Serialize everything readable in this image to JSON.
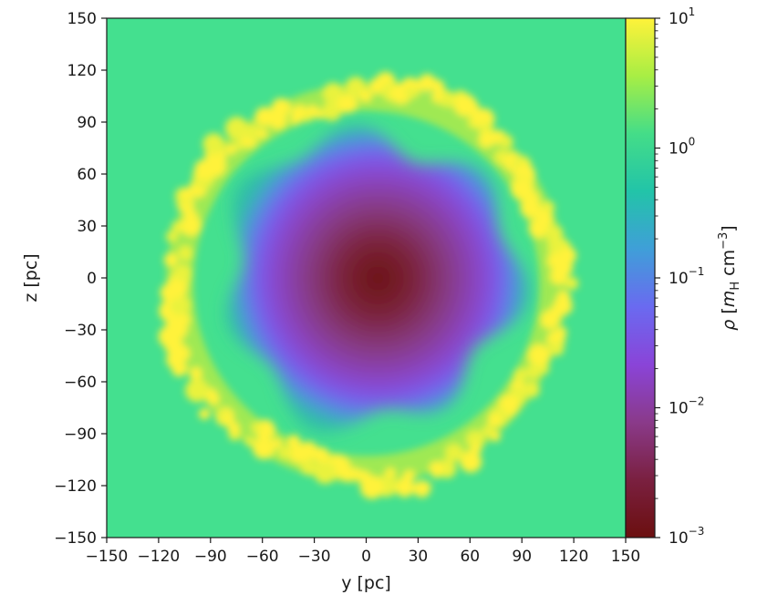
{
  "chart_data": {
    "type": "heatmap",
    "title": "",
    "xlabel": "y [pc]",
    "ylabel": "z [pc]",
    "xlim": [
      -150,
      150
    ],
    "ylim": [
      -150,
      150
    ],
    "xticks": [
      -150,
      -120,
      -90,
      -60,
      -30,
      0,
      30,
      60,
      90,
      120,
      150
    ],
    "yticks": [
      -150,
      -120,
      -90,
      -60,
      -30,
      0,
      30,
      60,
      90,
      120,
      150
    ],
    "xtick_labels": [
      "−150",
      "−120",
      "−90",
      "−60",
      "−30",
      "0",
      "30",
      "60",
      "90",
      "120",
      "150"
    ],
    "ytick_labels": [
      "−150",
      "−120",
      "−90",
      "−60",
      "−30",
      "0",
      "30",
      "60",
      "90",
      "120",
      "150"
    ],
    "grid": false,
    "description_values": {
      "ambient_density": 1.5,
      "shell_radius_pc": 112,
      "shell_density": 10,
      "cavity_center_pc": [
        5,
        5
      ],
      "cavity_center_density": 0.001
    },
    "colorbar": {
      "label_rho": "ρ",
      "label_main": "m",
      "label_sub": "H",
      "label_unit": "cm",
      "label_exp": "−3",
      "scale": "log",
      "range": [
        0.001,
        10
      ],
      "ticks": [
        {
          "value": 10,
          "base": "10",
          "exp": "1"
        },
        {
          "value": 1,
          "base": "10",
          "exp": "0"
        },
        {
          "value": 0.1,
          "base": "10",
          "exp": "−1"
        },
        {
          "value": 0.01,
          "base": "10",
          "exp": "−2"
        },
        {
          "value": 0.001,
          "base": "10",
          "exp": "−3"
        }
      ],
      "colors": [
        "#6b0f0f",
        "#7a2040",
        "#8a3a8a",
        "#8a44d8",
        "#6a6af0",
        "#3f9fd8",
        "#22c4a8",
        "#44dd88",
        "#a8ee44",
        "#fff23a"
      ]
    }
  }
}
